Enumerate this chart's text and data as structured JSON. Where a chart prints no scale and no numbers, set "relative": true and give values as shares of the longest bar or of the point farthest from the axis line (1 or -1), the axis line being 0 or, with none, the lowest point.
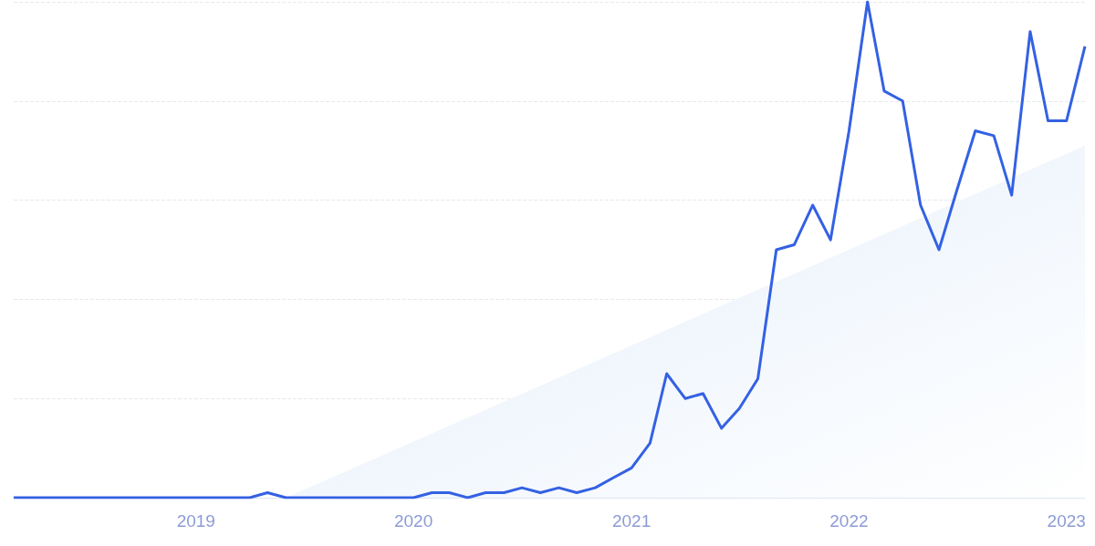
{
  "chart_data": {
    "type": "line",
    "relative": true,
    "grid": "y",
    "marker": "none",
    "line_style": "solid",
    "xlim": [
      "2018-03",
      "2023-02"
    ],
    "xticks": [
      "2019",
      "2020",
      "2021",
      "2022",
      "2023"
    ],
    "series": [
      {
        "type": "area",
        "color": "#e3eefb",
        "x": [
          "2019-06",
          "2023-02"
        ],
        "values": [
          0,
          0.71
        ]
      },
      {
        "type": "line",
        "color": "#3461e3",
        "x": [
          "2018-03",
          "2018-04",
          "2018-05",
          "2018-06",
          "2018-07",
          "2018-08",
          "2018-09",
          "2018-10",
          "2018-11",
          "2018-12",
          "2019-01",
          "2019-02",
          "2019-03",
          "2019-04",
          "2019-05",
          "2019-06",
          "2019-07",
          "2019-08",
          "2019-09",
          "2019-10",
          "2019-11",
          "2019-12",
          "2020-01",
          "2020-02",
          "2020-03",
          "2020-04",
          "2020-05",
          "2020-06",
          "2020-07",
          "2020-08",
          "2020-09",
          "2020-10",
          "2020-11",
          "2020-12",
          "2021-01",
          "2021-02",
          "2021-03",
          "2021-04",
          "2021-05",
          "2021-06",
          "2021-07",
          "2021-08",
          "2021-09",
          "2021-10",
          "2021-11",
          "2021-12",
          "2022-01",
          "2022-02",
          "2022-03",
          "2022-04",
          "2022-05",
          "2022-06",
          "2022-07",
          "2022-08",
          "2022-09",
          "2022-10",
          "2022-11",
          "2022-12",
          "2023-01",
          "2023-02"
        ],
        "values": [
          0,
          0,
          0,
          0,
          0,
          0,
          0,
          0,
          0,
          0,
          0,
          0,
          0,
          0,
          0.01,
          0,
          0,
          0,
          0,
          0,
          0,
          0,
          0,
          0.01,
          0.01,
          0,
          0.01,
          0.01,
          0.02,
          0.01,
          0.02,
          0.01,
          0.02,
          0.04,
          0.06,
          0.11,
          0.25,
          0.2,
          0.21,
          0.14,
          0.18,
          0.24,
          0.5,
          0.51,
          0.59,
          0.52,
          0.74,
          1.0,
          0.82,
          0.8,
          0.59,
          0.5,
          0.62,
          0.74,
          0.73,
          0.61,
          0.94,
          0.76,
          0.76,
          0.91
        ]
      }
    ]
  }
}
